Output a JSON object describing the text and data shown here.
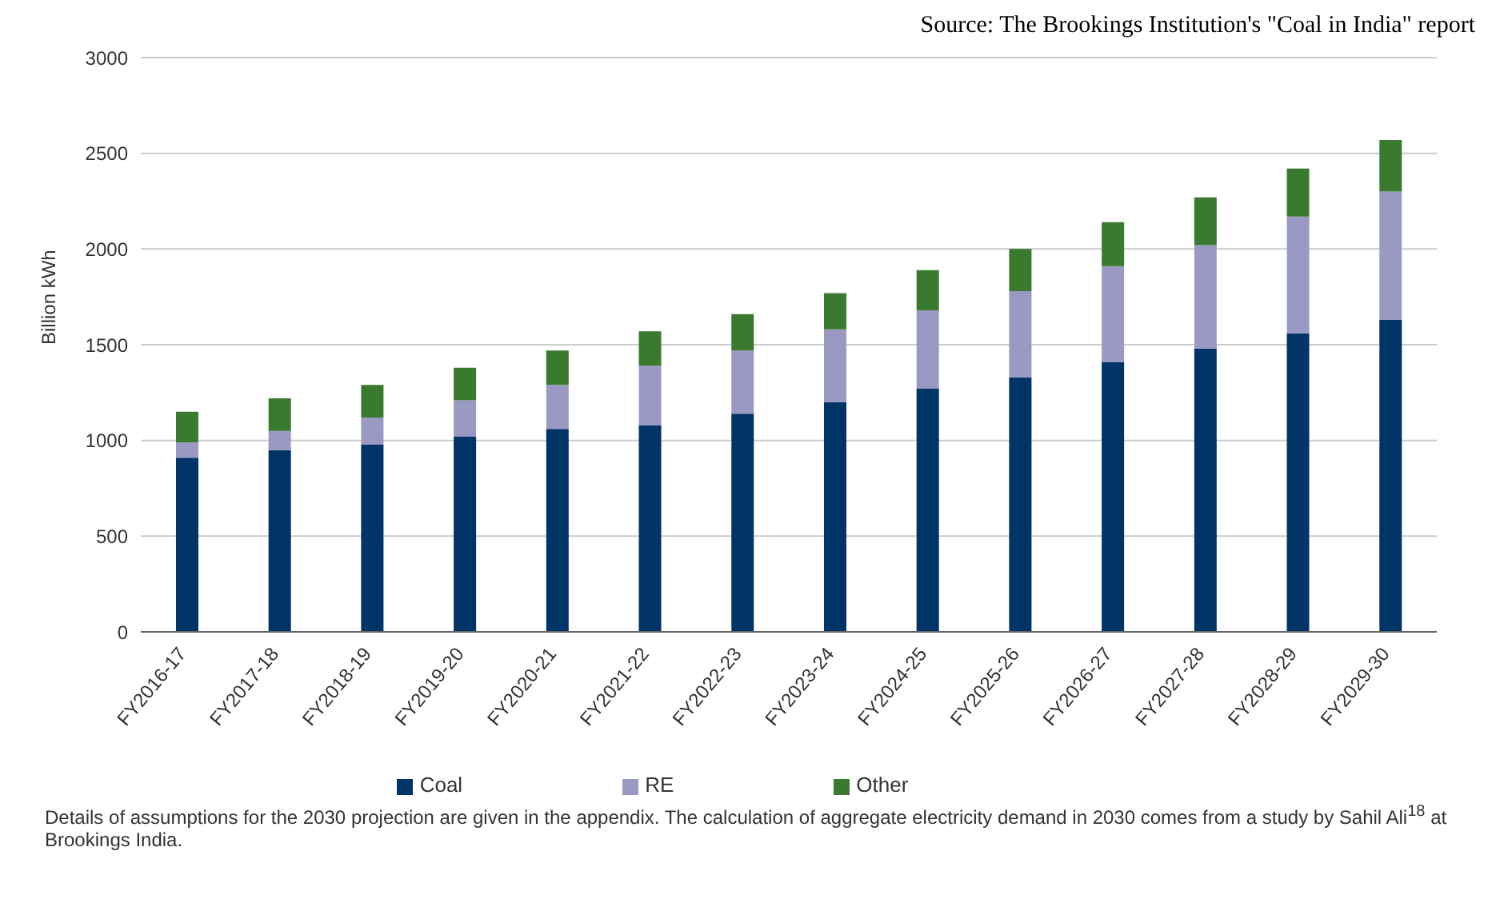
{
  "chart_data": {
    "type": "bar",
    "stacked": true,
    "ylabel": "Billion kWh",
    "categories": [
      "FY2016-17",
      "FY2017-18",
      "FY2018-19",
      "FY2019-20",
      "FY2020-21",
      "FY2021-22",
      "FY2022-23",
      "FY2023-24",
      "FY2024-25",
      "FY2025-26",
      "FY2026-27",
      "FY2027-28",
      "FY2028-29",
      "FY2029-30"
    ],
    "series": [
      {
        "name": "Coal",
        "color": "#003366",
        "values": [
          910,
          950,
          980,
          1020,
          1060,
          1080,
          1140,
          1200,
          1270,
          1330,
          1410,
          1480,
          1560,
          1630
        ]
      },
      {
        "name": "RE",
        "color": "#9999c4",
        "values": [
          80,
          100,
          140,
          190,
          230,
          310,
          330,
          380,
          410,
          450,
          500,
          540,
          610,
          670
        ]
      },
      {
        "name": "Other",
        "color": "#3a7a2e",
        "values": [
          160,
          170,
          170,
          170,
          180,
          180,
          190,
          190,
          210,
          220,
          230,
          250,
          250,
          270
        ]
      }
    ],
    "ylim": [
      0,
      3000
    ],
    "yticks": [
      0,
      500,
      1000,
      1500,
      2000,
      2500,
      3000
    ],
    "grid": "y",
    "legend": "bottom",
    "annotations": [
      "Source: The Brookings Institution's \"Coal in India\" report",
      "Details of assumptions for the 2030 projection are given in the appendix. The calculation of aggregate electricity demand in 2030 comes from a study by Sahil Ali$^{18}$ at Brookings India."
    ]
  }
}
